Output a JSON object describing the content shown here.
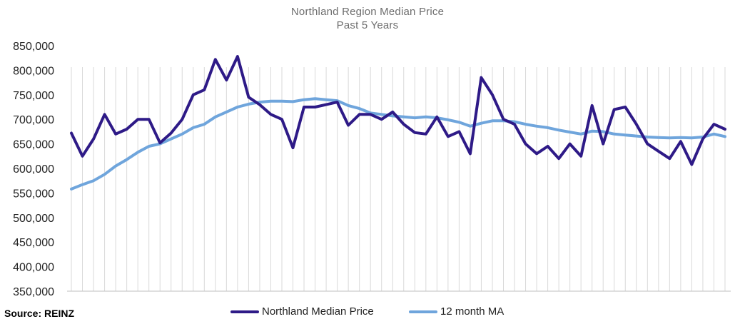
{
  "chart_data": {
    "type": "line",
    "title": "Northland Region Median Price",
    "subtitle": "Past 5 Years",
    "source": "Source: REINZ",
    "ylim": [
      350000,
      850000
    ],
    "yticks": [
      "850,000",
      "800,000",
      "750,000",
      "700,000",
      "650,000",
      "600,000",
      "550,000",
      "500,000",
      "450,000",
      "400,000",
      "350,000"
    ],
    "ytick_values": [
      850000,
      800000,
      750000,
      700000,
      650000,
      600000,
      550000,
      500000,
      450000,
      400000,
      350000
    ],
    "xlabel": "",
    "ylabel": "",
    "grid": "vertical",
    "legend_position": "bottom",
    "series": [
      {
        "name": "Northland Median Price",
        "color": "#2e1a87",
        "values": [
          672000,
          625000,
          660000,
          710000,
          670000,
          680000,
          700000,
          700000,
          652000,
          672000,
          700000,
          750000,
          760000,
          822000,
          780000,
          828000,
          745000,
          730000,
          710000,
          700000,
          642000,
          725000,
          725000,
          730000,
          735000,
          688000,
          710000,
          710000,
          700000,
          715000,
          690000,
          673000,
          670000,
          705000,
          665000,
          675000,
          630000,
          785000,
          750000,
          700000,
          690000,
          650000,
          630000,
          645000,
          620000,
          650000,
          625000,
          728000,
          650000,
          720000,
          725000,
          690000,
          650000,
          635000,
          620000,
          655000,
          608000,
          660000,
          690000,
          680000
        ]
      },
      {
        "name": "12 month MA",
        "color": "#6fa5dc",
        "values": [
          558000,
          567000,
          575000,
          588000,
          605000,
          618000,
          633000,
          645000,
          650000,
          660000,
          670000,
          683000,
          690000,
          705000,
          715000,
          725000,
          731000,
          735000,
          737000,
          737000,
          736000,
          740000,
          742000,
          740000,
          738000,
          728000,
          722000,
          713000,
          710000,
          707000,
          705000,
          703000,
          705000,
          703000,
          699000,
          694000,
          686000,
          692000,
          697000,
          697000,
          695000,
          690000,
          686000,
          683000,
          678000,
          674000,
          670000,
          676000,
          675000,
          670000,
          668000,
          666000,
          664000,
          663000,
          662000,
          663000,
          662000,
          664000,
          670000,
          665000
        ]
      }
    ]
  }
}
